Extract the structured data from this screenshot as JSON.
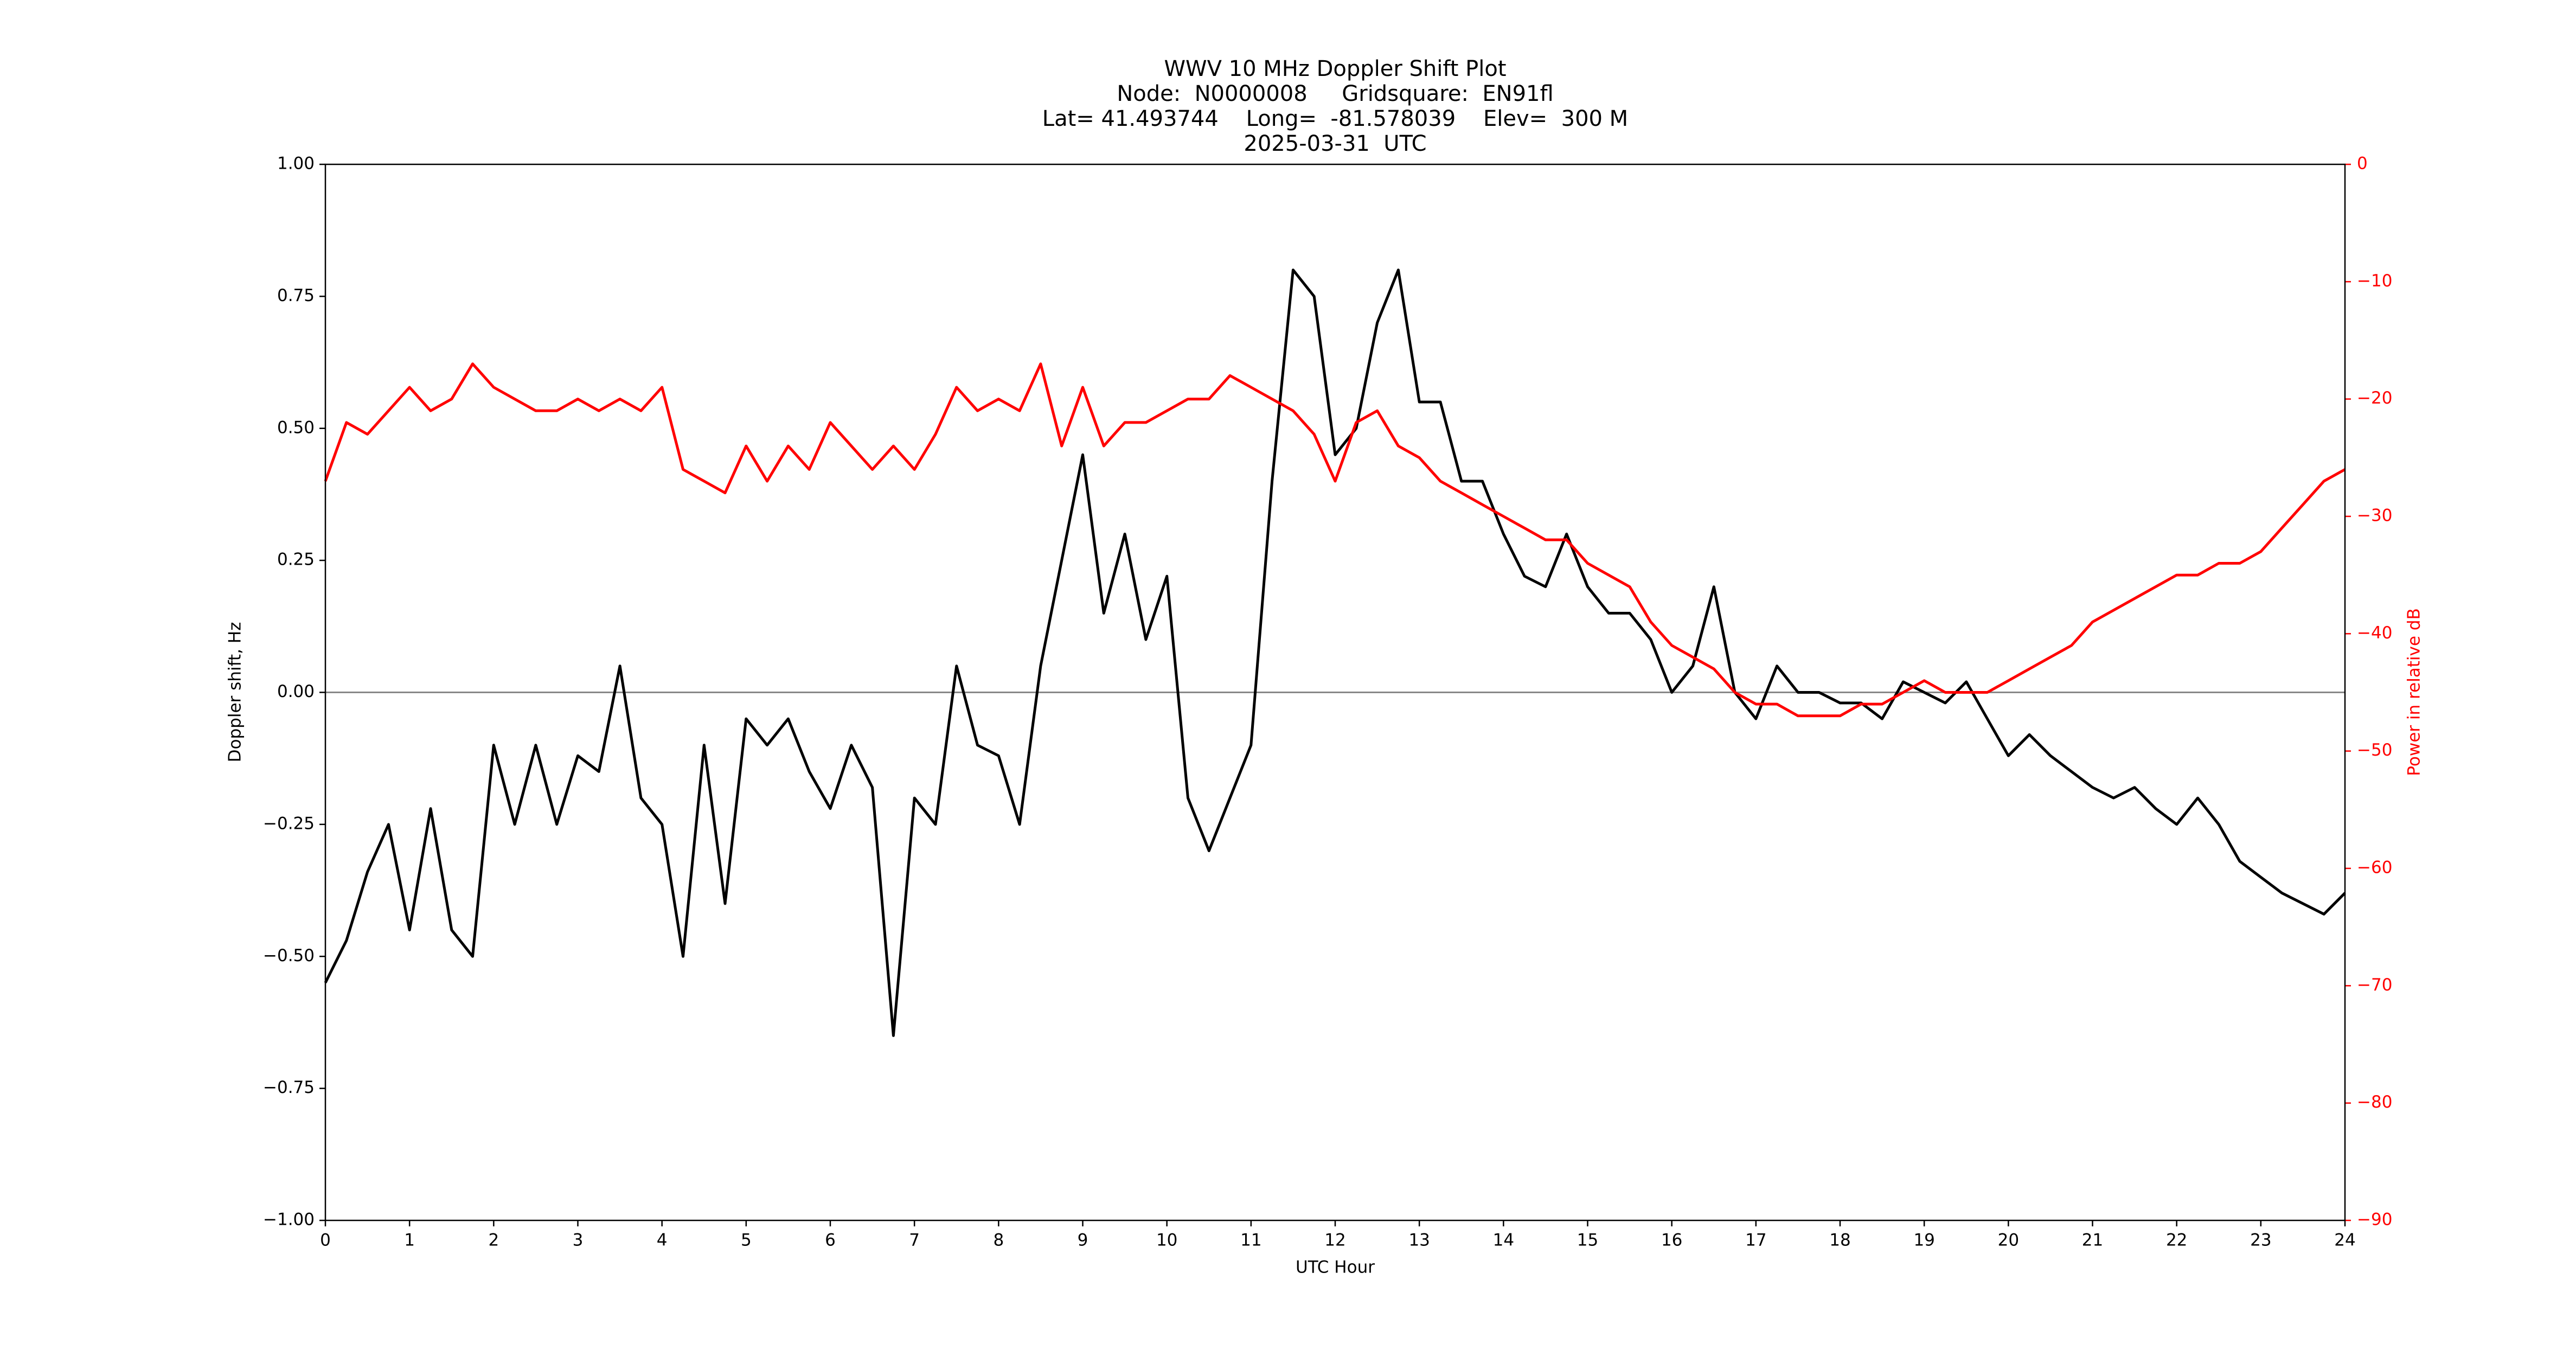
{
  "chart_data": {
    "type": "line",
    "title": [
      "WWV 10 MHz Doppler Shift Plot",
      "Node:  N0000008     Gridsquare:  EN91fl",
      "Lat= 41.493744    Long=  -81.578039    Elev=  300 M",
      "2025-03-31  UTC"
    ],
    "x_label": "UTC Hour",
    "y_label": "Doppler shift, Hz",
    "y2_label": "Power in relative dB",
    "x": [
      0,
      0.25,
      0.5,
      0.75,
      1,
      1.25,
      1.5,
      1.75,
      2,
      2.25,
      2.5,
      2.75,
      3,
      3.25,
      3.5,
      3.75,
      4,
      4.25,
      4.5,
      4.75,
      5,
      5.25,
      5.5,
      5.75,
      6,
      6.25,
      6.5,
      6.75,
      7,
      7.25,
      7.5,
      7.75,
      8,
      8.25,
      8.5,
      8.75,
      9,
      9.25,
      9.5,
      9.75,
      10,
      10.25,
      10.5,
      10.75,
      11,
      11.25,
      11.5,
      11.75,
      12,
      12.25,
      12.5,
      12.75,
      13,
      13.25,
      13.5,
      13.75,
      14,
      14.25,
      14.5,
      14.75,
      15,
      15.25,
      15.5,
      15.75,
      16,
      16.25,
      16.5,
      16.75,
      17,
      17.25,
      17.5,
      17.75,
      18,
      18.25,
      18.5,
      18.75,
      19,
      19.25,
      19.5,
      19.75,
      20,
      20.25,
      20.5,
      20.75,
      21,
      21.25,
      21.5,
      21.75,
      22,
      22.25,
      22.5,
      22.75,
      23,
      23.25,
      23.5,
      23.75,
      24
    ],
    "series": [
      {
        "color": "#000000",
        "axis": "y",
        "values": [
          -0.55,
          -0.47,
          -0.34,
          -0.25,
          -0.45,
          -0.22,
          -0.45,
          -0.5,
          -0.1,
          -0.25,
          -0.1,
          -0.25,
          -0.12,
          -0.15,
          0.05,
          -0.2,
          -0.25,
          -0.5,
          -0.1,
          -0.4,
          -0.05,
          -0.1,
          -0.05,
          -0.15,
          -0.22,
          -0.1,
          -0.18,
          -0.65,
          -0.2,
          -0.25,
          0.05,
          -0.1,
          -0.12,
          -0.25,
          0.05,
          0.25,
          0.45,
          0.15,
          0.3,
          0.1,
          0.22,
          -0.2,
          -0.3,
          -0.2,
          -0.1,
          0.4,
          0.8,
          0.75,
          0.45,
          0.5,
          0.7,
          0.8,
          0.55,
          0.55,
          0.4,
          0.4,
          0.3,
          0.22,
          0.2,
          0.3,
          0.2,
          0.15,
          0.15,
          0.1,
          0.0,
          0.05,
          0.2,
          0.0,
          -0.05,
          0.05,
          0.0,
          0.0,
          -0.02,
          -0.02,
          -0.05,
          0.02,
          0.0,
          -0.02,
          0.02,
          -0.05,
          -0.12,
          -0.08,
          -0.12,
          -0.15,
          -0.18,
          -0.2,
          -0.18,
          -0.22,
          -0.25,
          -0.2,
          -0.25,
          -0.32,
          -0.35,
          -0.38,
          -0.4,
          -0.42,
          -0.38
        ]
      },
      {
        "color": "#ff0000",
        "axis": "y2",
        "values": [
          -27,
          -22,
          -23,
          -21,
          -19,
          -21,
          -20,
          -17,
          -19,
          -20,
          -21,
          -21,
          -20,
          -21,
          -20,
          -21,
          -19,
          -26,
          -27,
          -28,
          -24,
          -27,
          -24,
          -26,
          -22,
          -24,
          -26,
          -24,
          -26,
          -23,
          -19,
          -21,
          -20,
          -21,
          -17,
          -24,
          -19,
          -24,
          -22,
          -22,
          -21,
          -20,
          -20,
          -18,
          -19,
          -20,
          -21,
          -23,
          -27,
          -22,
          -21,
          -24,
          -25,
          -27,
          -28,
          -29,
          -30,
          -31,
          -32,
          -32,
          -34,
          -35,
          -36,
          -39,
          -41,
          -42,
          -43,
          -45,
          -46,
          -46,
          -47,
          -47,
          -47,
          -46,
          -46,
          -45,
          -44,
          -45,
          -45,
          -45,
          -44,
          -43,
          -42,
          -41,
          -39,
          -38,
          -37,
          -36,
          -35,
          -35,
          -34,
          -34,
          -33,
          -31,
          -29,
          -27,
          -26
        ]
      }
    ],
    "xlim": [
      0,
      24
    ],
    "xticks": [
      0,
      1,
      2,
      3,
      4,
      5,
      6,
      7,
      8,
      9,
      10,
      11,
      12,
      13,
      14,
      15,
      16,
      17,
      18,
      19,
      20,
      21,
      22,
      23,
      24
    ],
    "ylim": [
      -1,
      1
    ],
    "yticks": [
      {
        "value": -1,
        "label": "−1.00"
      },
      {
        "value": -0.75,
        "label": "−0.75"
      },
      {
        "value": -0.5,
        "label": "−0.50"
      },
      {
        "value": -0.25,
        "label": "−0.25"
      },
      {
        "value": 0,
        "label": "0.00"
      },
      {
        "value": 0.25,
        "label": "0.25"
      },
      {
        "value": 0.5,
        "label": "0.50"
      },
      {
        "value": 0.75,
        "label": "0.75"
      },
      {
        "value": 1,
        "label": "1.00"
      }
    ],
    "y2lim": [
      -90,
      0
    ],
    "y2ticks": [
      {
        "value": -90,
        "label": "−90"
      },
      {
        "value": -80,
        "label": "−80"
      },
      {
        "value": -70,
        "label": "−70"
      },
      {
        "value": -60,
        "label": "−60"
      },
      {
        "value": -50,
        "label": "−50"
      },
      {
        "value": -40,
        "label": "−40"
      },
      {
        "value": -30,
        "label": "−30"
      },
      {
        "value": -20,
        "label": "−20"
      },
      {
        "value": -10,
        "label": "−10"
      },
      0
    ],
    "y2_color": "#ff0000",
    "reference_line": 0
  }
}
